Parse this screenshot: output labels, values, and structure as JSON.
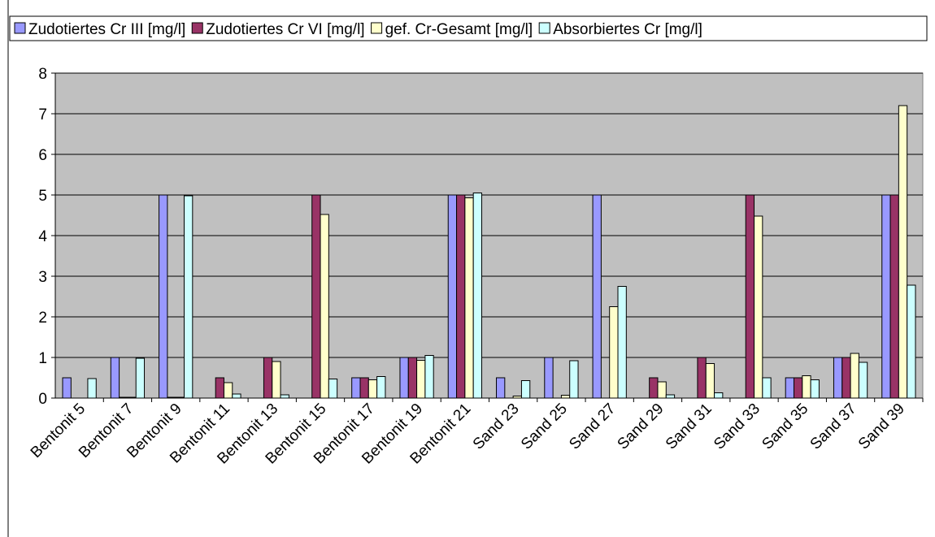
{
  "chart_data": {
    "type": "bar",
    "categories": [
      "Bentonit 5",
      "Bentonit 7",
      "Bentonit 9",
      "Bentonit 11",
      "Bentonit 13",
      "Bentonit 15",
      "Bentonit 17",
      "Bentonit 19",
      "Bentonit 21",
      "Sand 23",
      "Sand 25",
      "Sand 27",
      "Sand 29",
      "Sand 31",
      "Sand 33",
      "Sand 35",
      "Sand 37",
      "Sand 39"
    ],
    "series": [
      {
        "name": "Zudotiertes Cr III [mg/l]",
        "color": "#9999ff",
        "values": [
          0.5,
          1,
          5,
          0,
          0,
          0,
          0.5,
          1,
          5,
          0.5,
          1,
          5,
          0,
          0,
          0,
          0.5,
          1,
          5
        ]
      },
      {
        "name": "Zudotiertes Cr VI [mg/l]",
        "color": "#993366",
        "values": [
          0,
          0.02,
          0.02,
          0.5,
          1,
          5,
          0.5,
          1,
          5,
          0,
          0,
          0,
          0.5,
          1,
          5,
          0.5,
          1,
          5
        ]
      },
      {
        "name": "gef. Cr-Gesamt [mg/l]",
        "color": "#ffffcc",
        "values": [
          0,
          0.02,
          0.02,
          0.38,
          0.9,
          4.52,
          0.45,
          0.93,
          4.93,
          0.05,
          0.07,
          2.25,
          0.4,
          0.85,
          4.48,
          0.55,
          1.1,
          7.2
        ]
      },
      {
        "name": "Absorbiertes Cr [mg/l]",
        "color": "#ccffff",
        "values": [
          0.48,
          0.98,
          4.98,
          0.1,
          0.08,
          0.47,
          0.53,
          1.05,
          5.05,
          0.43,
          0.92,
          2.75,
          0.08,
          0.13,
          0.5,
          0.45,
          0.88,
          2.78
        ]
      }
    ],
    "ylim": [
      0,
      8
    ],
    "yticks": [
      0,
      1,
      2,
      3,
      4,
      5,
      6,
      7,
      8
    ],
    "grid": true,
    "legend": "top"
  }
}
